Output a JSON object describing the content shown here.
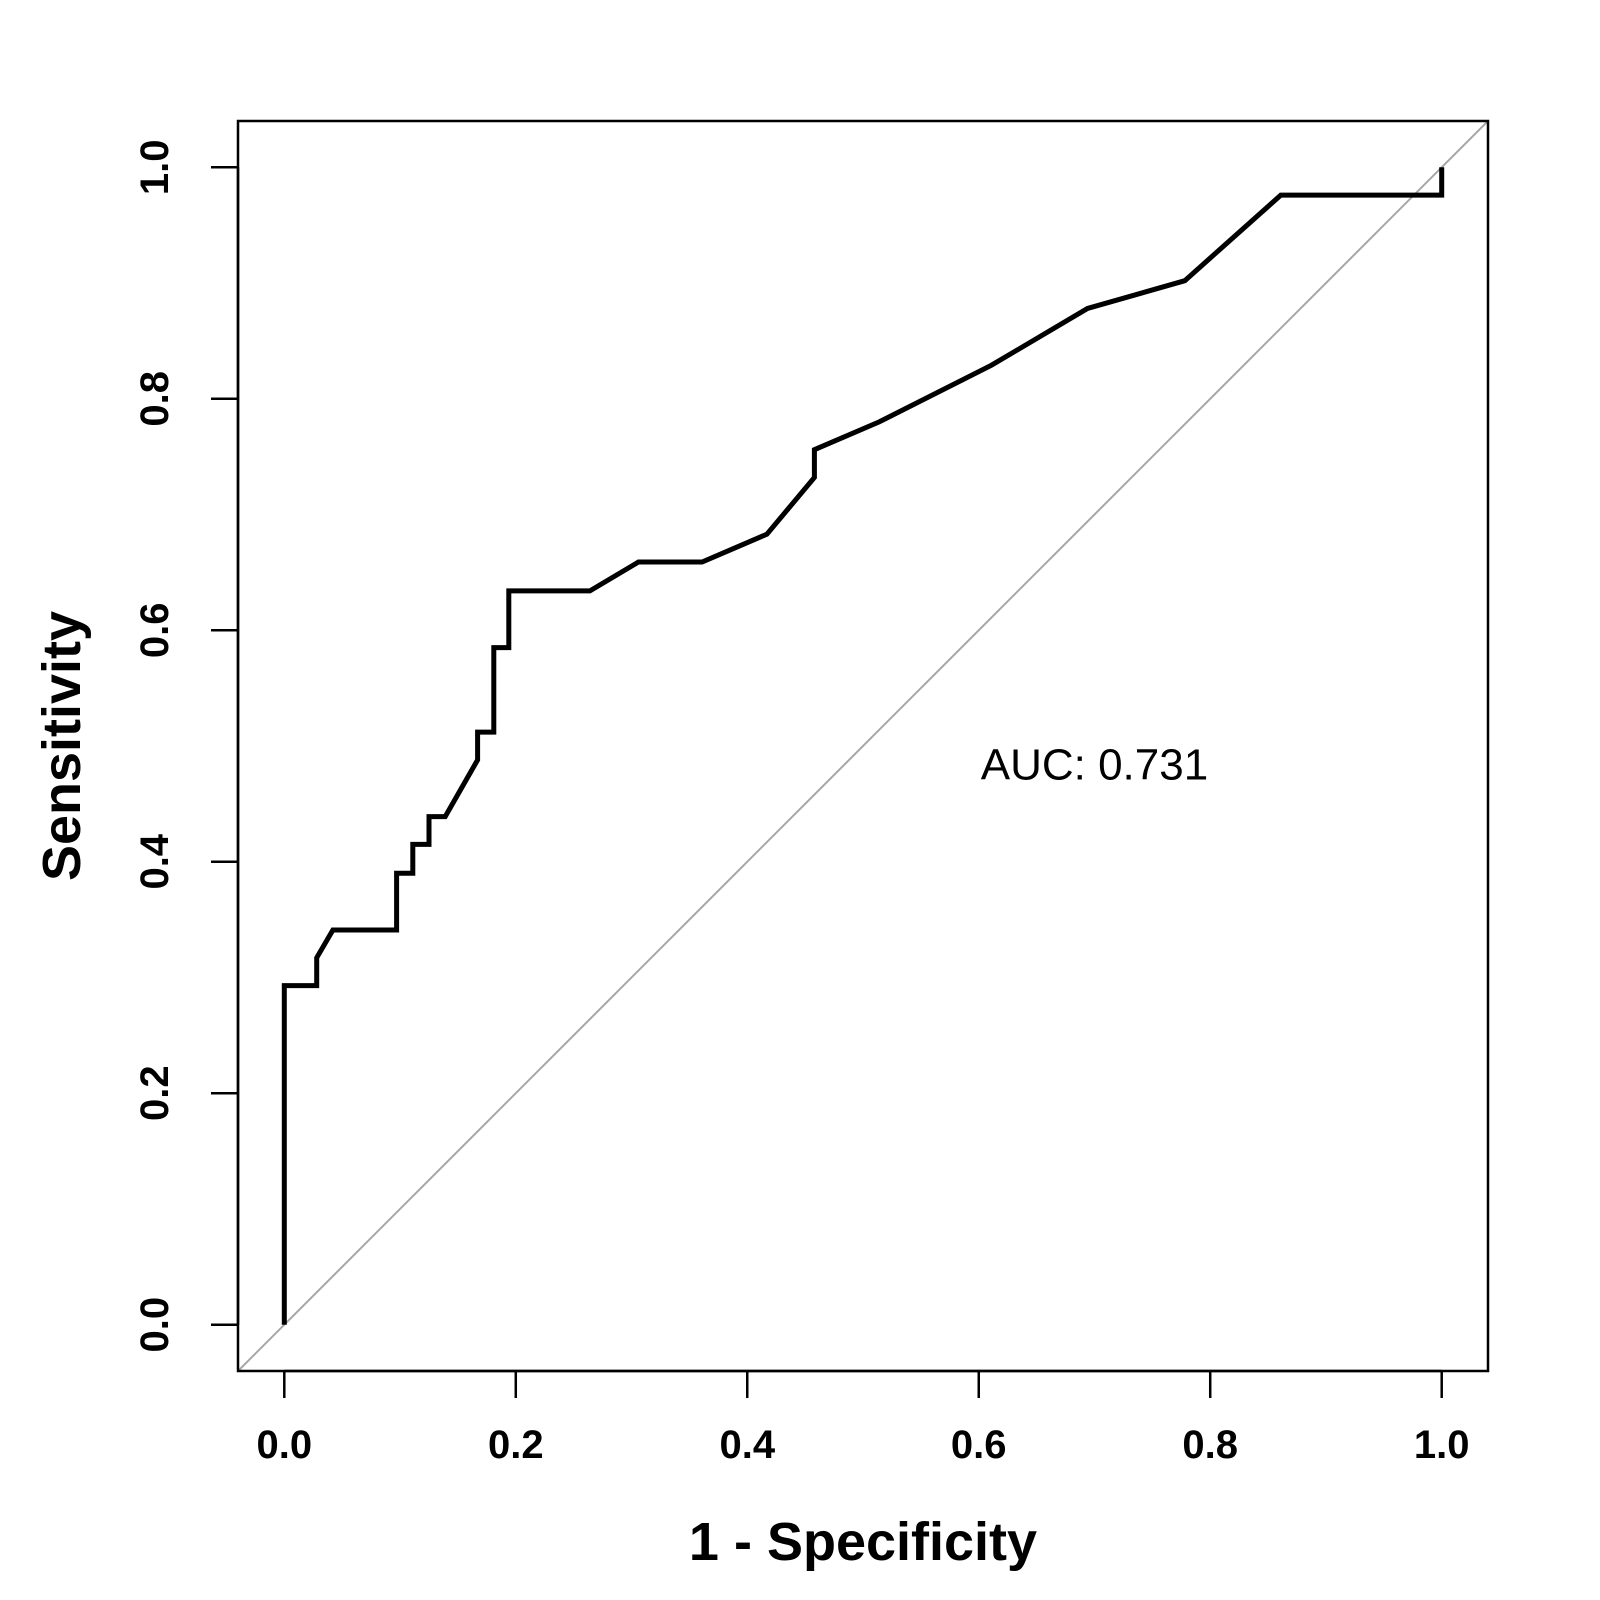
{
  "chart_data": {
    "type": "line",
    "xlabel": "1 - Specificity",
    "ylabel": "Sensitivity",
    "xlim": [
      -0.04,
      1.04
    ],
    "ylim": [
      -0.04,
      1.04
    ],
    "x_ticks": [
      "0.0",
      "0.2",
      "0.4",
      "0.6",
      "0.8",
      "1.0"
    ],
    "y_ticks": [
      "0.0",
      "0.2",
      "0.4",
      "0.6",
      "0.8",
      "1.0"
    ],
    "grid": false,
    "reference_line": {
      "from": [
        0,
        0
      ],
      "to": [
        1,
        1
      ],
      "color": "#a6a6a6"
    },
    "annotation": {
      "text": "AUC: 0.731",
      "x": 0.7,
      "y": 0.485
    },
    "series": [
      {
        "color": "#000000",
        "points": [
          [
            0.0,
            0.0
          ],
          [
            0.0,
            0.293
          ],
          [
            0.028,
            0.293
          ],
          [
            0.028,
            0.317
          ],
          [
            0.042,
            0.341
          ],
          [
            0.097,
            0.341
          ],
          [
            0.097,
            0.39
          ],
          [
            0.111,
            0.39
          ],
          [
            0.111,
            0.415
          ],
          [
            0.125,
            0.415
          ],
          [
            0.125,
            0.439
          ],
          [
            0.139,
            0.439
          ],
          [
            0.167,
            0.488
          ],
          [
            0.167,
            0.512
          ],
          [
            0.181,
            0.512
          ],
          [
            0.181,
            0.585
          ],
          [
            0.194,
            0.585
          ],
          [
            0.194,
            0.634
          ],
          [
            0.264,
            0.634
          ],
          [
            0.306,
            0.659
          ],
          [
            0.361,
            0.659
          ],
          [
            0.417,
            0.683
          ],
          [
            0.458,
            0.732
          ],
          [
            0.458,
            0.756
          ],
          [
            0.514,
            0.78
          ],
          [
            0.611,
            0.829
          ],
          [
            0.694,
            0.878
          ],
          [
            0.778,
            0.902
          ],
          [
            0.861,
            0.976
          ],
          [
            1.0,
            0.976
          ],
          [
            1.0,
            1.0
          ]
        ]
      }
    ]
  }
}
